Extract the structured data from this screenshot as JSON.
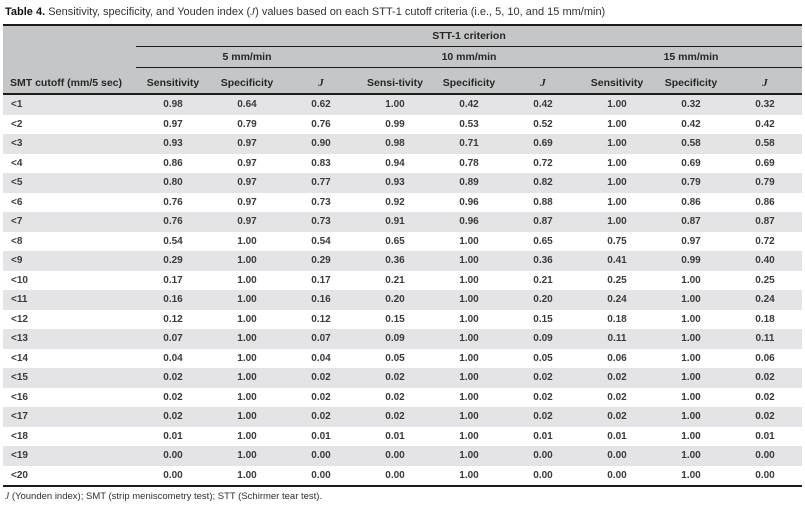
{
  "title": {
    "label": "Table 4.",
    "text_before_j": " Sensitivity, specificity, and Youden index (",
    "j": "J",
    "text_after_j": ") values based on each STT-1 cutoff criteria (i.e., 5, 10, and 15 mm/min)"
  },
  "table": {
    "criterion_header": "STT-1 criterion",
    "row_header": "SMT cutoff (mm/5 sec)",
    "group_headers": [
      "5 mm/min",
      "10 mm/min",
      "15 mm/min"
    ],
    "col_headers": [
      "Sensitivity",
      "Specificity",
      "J",
      "Sensi-tivity",
      "Specificity",
      "J",
      "Sensitivity",
      "Specificity",
      "J"
    ],
    "rows": [
      {
        "cutoff": "<1",
        "values": [
          "0.98",
          "0.64",
          "0.62",
          "1.00",
          "0.42",
          "0.42",
          "1.00",
          "0.32",
          "0.32"
        ]
      },
      {
        "cutoff": "<2",
        "values": [
          "0.97",
          "0.79",
          "0.76",
          "0.99",
          "0.53",
          "0.52",
          "1.00",
          "0.42",
          "0.42"
        ]
      },
      {
        "cutoff": "<3",
        "values": [
          "0.93",
          "0.97",
          "0.90",
          "0.98",
          "0.71",
          "0.69",
          "1.00",
          "0.58",
          "0.58"
        ]
      },
      {
        "cutoff": "<4",
        "values": [
          "0.86",
          "0.97",
          "0.83",
          "0.94",
          "0.78",
          "0.72",
          "1.00",
          "0.69",
          "0.69"
        ]
      },
      {
        "cutoff": "<5",
        "values": [
          "0.80",
          "0.97",
          "0.77",
          "0.93",
          "0.89",
          "0.82",
          "1.00",
          "0.79",
          "0.79"
        ]
      },
      {
        "cutoff": "<6",
        "values": [
          "0.76",
          "0.97",
          "0.73",
          "0.92",
          "0.96",
          "0.88",
          "1.00",
          "0.86",
          "0.86"
        ]
      },
      {
        "cutoff": "<7",
        "values": [
          "0.76",
          "0.97",
          "0.73",
          "0.91",
          "0.96",
          "0.87",
          "1.00",
          "0.87",
          "0.87"
        ]
      },
      {
        "cutoff": "<8",
        "values": [
          "0.54",
          "1.00",
          "0.54",
          "0.65",
          "1.00",
          "0.65",
          "0.75",
          "0.97",
          "0.72"
        ]
      },
      {
        "cutoff": "<9",
        "values": [
          "0.29",
          "1.00",
          "0.29",
          "0.36",
          "1.00",
          "0.36",
          "0.41",
          "0.99",
          "0.40"
        ]
      },
      {
        "cutoff": "<10",
        "values": [
          "0.17",
          "1.00",
          "0.17",
          "0.21",
          "1.00",
          "0.21",
          "0.25",
          "1.00",
          "0.25"
        ]
      },
      {
        "cutoff": "<11",
        "values": [
          "0.16",
          "1.00",
          "0.16",
          "0.20",
          "1.00",
          "0.20",
          "0.24",
          "1.00",
          "0.24"
        ]
      },
      {
        "cutoff": "<12",
        "values": [
          "0.12",
          "1.00",
          "0.12",
          "0.15",
          "1.00",
          "0.15",
          "0.18",
          "1.00",
          "0.18"
        ]
      },
      {
        "cutoff": "<13",
        "values": [
          "0.07",
          "1.00",
          "0.07",
          "0.09",
          "1.00",
          "0.09",
          "0.11",
          "1.00",
          "0.11"
        ]
      },
      {
        "cutoff": "<14",
        "values": [
          "0.04",
          "1.00",
          "0.04",
          "0.05",
          "1.00",
          "0.05",
          "0.06",
          "1.00",
          "0.06"
        ]
      },
      {
        "cutoff": "<15",
        "values": [
          "0.02",
          "1.00",
          "0.02",
          "0.02",
          "1.00",
          "0.02",
          "0.02",
          "1.00",
          "0.02"
        ]
      },
      {
        "cutoff": "<16",
        "values": [
          "0.02",
          "1.00",
          "0.02",
          "0.02",
          "1.00",
          "0.02",
          "0.02",
          "1.00",
          "0.02"
        ]
      },
      {
        "cutoff": "<17",
        "values": [
          "0.02",
          "1.00",
          "0.02",
          "0.02",
          "1.00",
          "0.02",
          "0.02",
          "1.00",
          "0.02"
        ]
      },
      {
        "cutoff": "<18",
        "values": [
          "0.01",
          "1.00",
          "0.01",
          "0.01",
          "1.00",
          "0.01",
          "0.01",
          "1.00",
          "0.01"
        ]
      },
      {
        "cutoff": "<19",
        "values": [
          "0.00",
          "1.00",
          "0.00",
          "0.00",
          "1.00",
          "0.00",
          "0.00",
          "1.00",
          "0.00"
        ]
      },
      {
        "cutoff": "<20",
        "values": [
          "0.00",
          "1.00",
          "0.00",
          "0.00",
          "1.00",
          "0.00",
          "0.00",
          "1.00",
          "0.00"
        ]
      }
    ]
  },
  "footnote": {
    "j": "J",
    "rest": " (Younden index); SMT (strip meniscometry test); STT (Schirmer tear test)."
  },
  "colors": {
    "header_bg": "#c5c6c7",
    "stripe_bg": "#e4e4e6",
    "rule": "#1c1c1c",
    "data_text": "#3a3a3a"
  }
}
